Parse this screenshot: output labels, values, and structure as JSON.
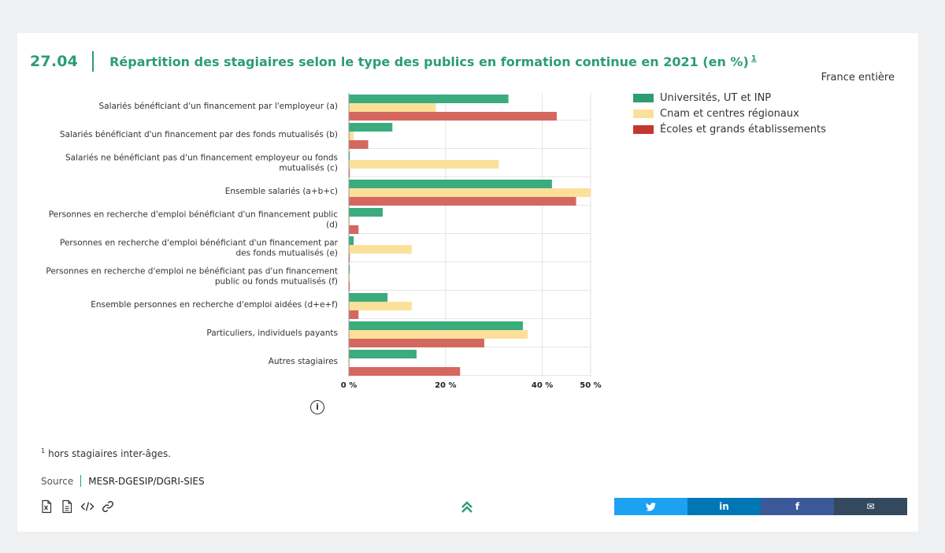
{
  "figure": {
    "number": "27.04",
    "title": "Répartition des stagiaires selon le type des publics en formation continue en 2021 (en %)",
    "title_note": "1",
    "scope": "France entière"
  },
  "chart_data": {
    "type": "bar",
    "orientation": "horizontal",
    "categories": [
      "Salariés bénéficiant d'un financement par l'employeur (a)",
      "Salariés bénéficiant d'un financement par des fonds mutualisés (b)",
      "Salariés ne bénéficiant pas d'un financement employeur ou fonds mutualisés (c)",
      "Ensemble salariés (a+b+c)",
      "Personnes en recherche d'emploi bénéficiant d'un financement public (d)",
      "Personnes en recherche d'emploi bénéficiant d'un financement par des fonds mutualisés (e)",
      "Personnes en recherche d'emploi ne bénéficiant pas d'un financement public ou fonds mutualisés (f)",
      "Ensemble personnes en recherche d'emploi aidées (d+e+f)",
      "Particuliers, individuels payants",
      "Autres stagiaires"
    ],
    "series": [
      {
        "name": "Universités, UT et INP",
        "color": "#3aac7d",
        "values": [
          33,
          9,
          0,
          42,
          7,
          1,
          0,
          8,
          36,
          14
        ]
      },
      {
        "name": "Cnam et centres régionaux",
        "color": "#fbe09a",
        "values": [
          18,
          1,
          31,
          50,
          0,
          13,
          0,
          13,
          37,
          0
        ]
      },
      {
        "name": "Écoles et grands établissements",
        "color": "#d4685f",
        "values": [
          43,
          4,
          0,
          47,
          2,
          0,
          0,
          2,
          28,
          23
        ]
      }
    ],
    "x_ticks": [
      {
        "value": 0,
        "label": "0 %"
      },
      {
        "value": 20,
        "label": "20 %"
      },
      {
        "value": 40,
        "label": "40 %"
      },
      {
        "value": 50,
        "label": "50 %"
      }
    ],
    "xlim": [
      0,
      50
    ],
    "grid": true,
    "legend_position": "top-right"
  },
  "legend": [
    {
      "label": "Universités, UT et INP",
      "color": "#2f9d6f"
    },
    {
      "label": "Cnam et centres régionaux",
      "color": "#fbe09a"
    },
    {
      "label": "Écoles et grands établissements",
      "color": "#c4372e"
    }
  ],
  "info_icon": "info-icon",
  "footnote": {
    "marker": "1",
    "text": "hors stagiaires inter-âges."
  },
  "source": {
    "label": "Source",
    "value": "MESR-DGESIP/DGRI-SIES"
  },
  "tools": [
    {
      "name": "excel-icon",
      "title": "Excel"
    },
    {
      "name": "document-icon",
      "title": "Document"
    },
    {
      "name": "code-icon",
      "title": "Code"
    },
    {
      "name": "link-icon",
      "title": "Lien"
    }
  ],
  "back_to_top_icon": "double-chevron-up-icon",
  "share": [
    {
      "name": "twitter",
      "glyph": "🐦",
      "color": "#1da1f2"
    },
    {
      "name": "linkedin",
      "glyph": "in",
      "color": "#0077b5"
    },
    {
      "name": "facebook",
      "glyph": "f",
      "color": "#3b5998"
    },
    {
      "name": "email",
      "glyph": "✉",
      "color": "#34495e"
    }
  ]
}
